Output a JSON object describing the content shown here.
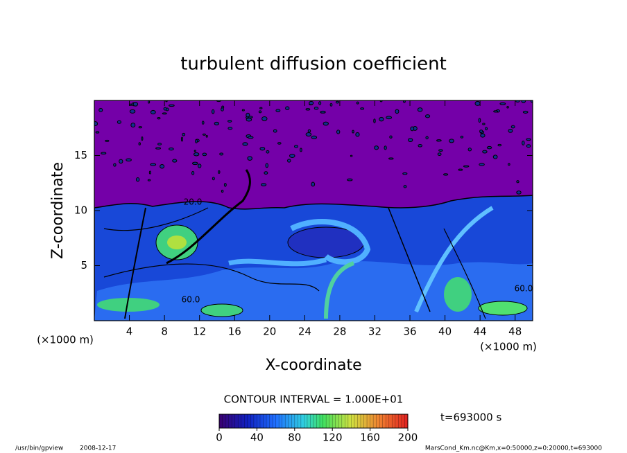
{
  "chart_data": {
    "type": "contour",
    "title": "turbulent diffusion coefficient",
    "x_label": "X-coordinate",
    "y_label": "Z-coordinate",
    "x_unit": "(×1000 m)",
    "y_unit": "(×1000 m)",
    "xlim": [
      0,
      50
    ],
    "xticks": [
      4,
      8,
      12,
      16,
      20,
      24,
      28,
      32,
      36,
      40,
      44,
      48
    ],
    "ylim": [
      0,
      20
    ],
    "yticks": [
      5,
      10,
      15
    ],
    "contour_labels": [
      "20.0",
      "60.0",
      "60.0"
    ],
    "contour_interval_label": "CONTOUR INTERVAL = 1.000E+01",
    "time_label": "t=693000 s",
    "colorbar": {
      "lim": [
        0,
        200
      ],
      "ticks": [
        0,
        40,
        80,
        120,
        160,
        200
      ]
    },
    "footer_program": "/usr/bin/gpview",
    "footer_date": "2008-12-17",
    "footer_right": "MarsCond_Km.nc@Km,x=0:50000,z=0:20000,t=693000"
  }
}
